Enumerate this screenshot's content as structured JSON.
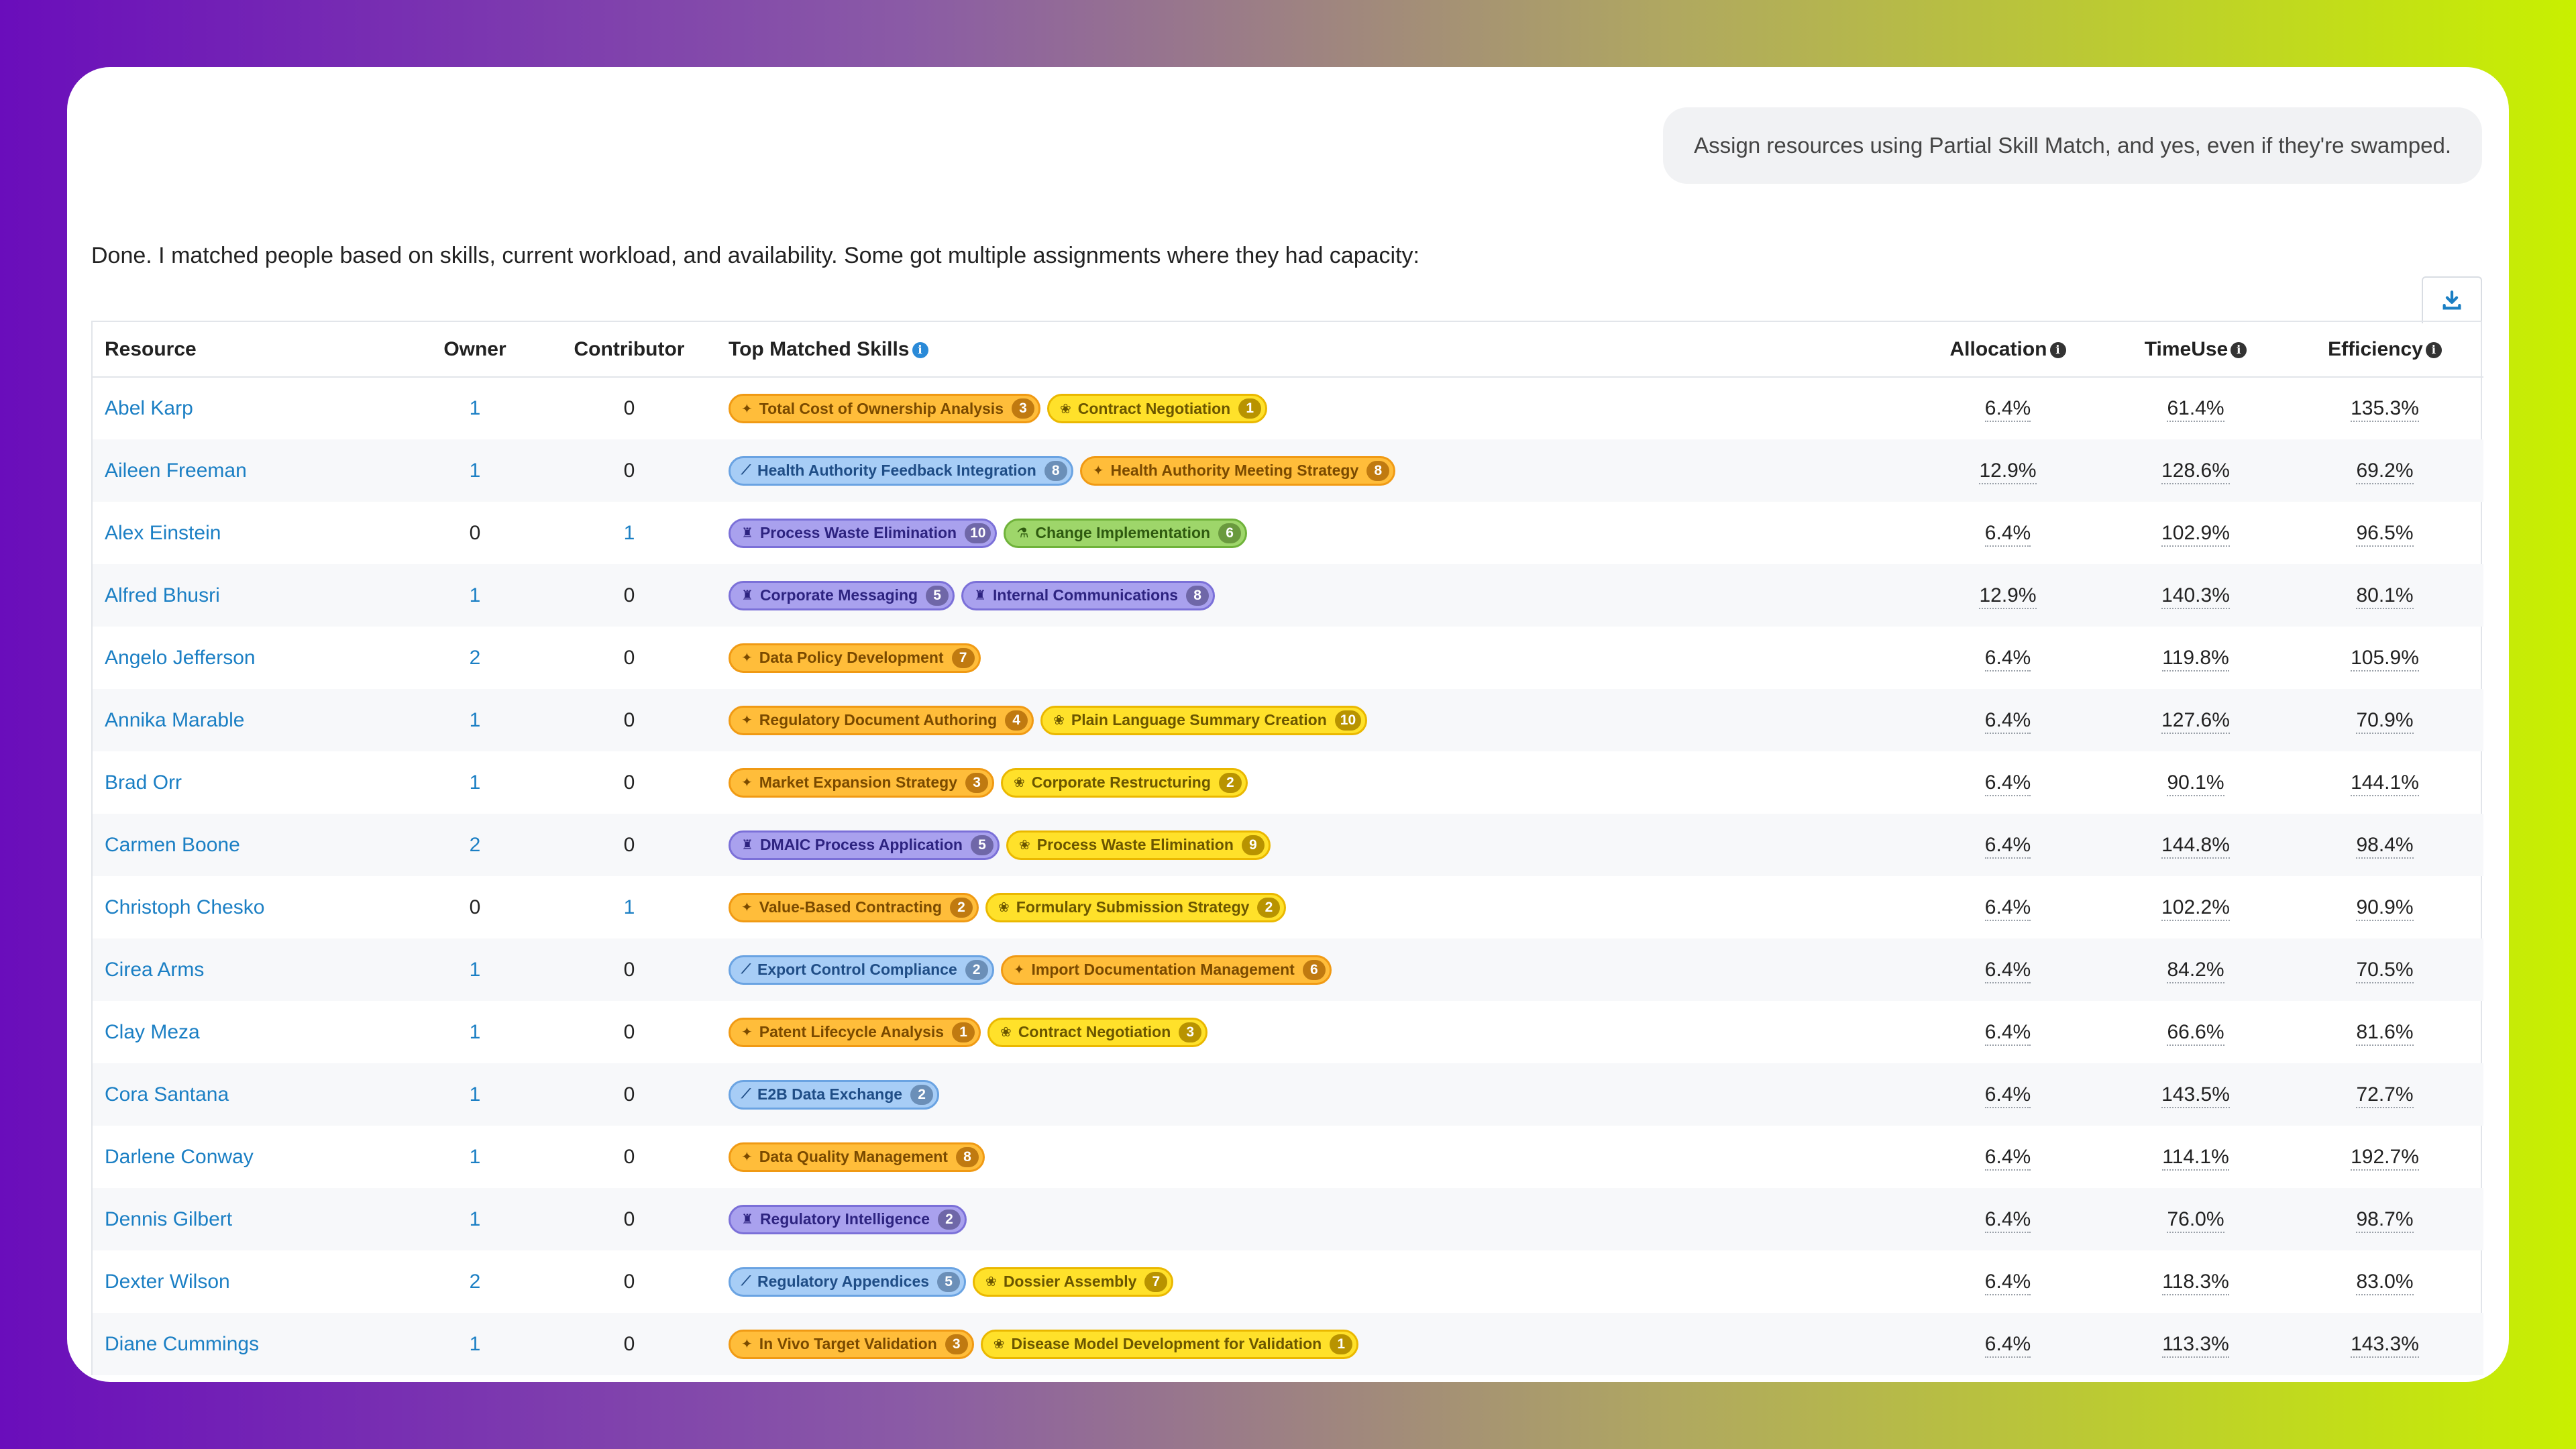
{
  "user_message": "Assign resources using Partial Skill Match, and yes, even if they're swamped.",
  "assistant_message": "Done. I matched people based on skills, current workload, and availability. Some got multiple assignments where they had capacity:",
  "table": {
    "headers": {
      "resource": "Resource",
      "owner": "Owner",
      "contributor": "Contributor",
      "skills": "Top Matched Skills",
      "allocation": "Allocation",
      "timeuse": "TimeUse",
      "efficiency": "Efficiency"
    },
    "info_glyph": "i",
    "rows": [
      {
        "name": "Abel Karp",
        "owner": "1",
        "contributor": "0",
        "skills": [
          {
            "label": "Total Cost of Ownership Analysis",
            "count": "3",
            "color": "orange",
            "icon": "puzzle-icon"
          },
          {
            "label": "Contract Negotiation",
            "count": "1",
            "color": "yellow",
            "icon": "paw-icon"
          }
        ],
        "allocation": "6.4%",
        "timeuse": "61.4%",
        "efficiency": "135.3%"
      },
      {
        "name": "Aileen Freeman",
        "owner": "1",
        "contributor": "0",
        "skills": [
          {
            "label": "Health Authority Feedback Integration",
            "count": "8",
            "color": "blue",
            "icon": "wand-icon"
          },
          {
            "label": "Health Authority Meeting Strategy",
            "count": "8",
            "color": "orange",
            "icon": "puzzle-icon"
          }
        ],
        "allocation": "12.9%",
        "timeuse": "128.6%",
        "efficiency": "69.2%"
      },
      {
        "name": "Alex Einstein",
        "owner": "0",
        "contributor": "1",
        "skills": [
          {
            "label": "Process Waste Elimination",
            "count": "10",
            "color": "purple",
            "icon": "trophy-icon"
          },
          {
            "label": "Change Implementation",
            "count": "6",
            "color": "green",
            "icon": "flask-icon"
          }
        ],
        "allocation": "6.4%",
        "timeuse": "102.9%",
        "efficiency": "96.5%"
      },
      {
        "name": "Alfred Bhusri",
        "owner": "1",
        "contributor": "0",
        "skills": [
          {
            "label": "Corporate Messaging",
            "count": "5",
            "color": "purple",
            "icon": "trophy-icon"
          },
          {
            "label": "Internal Communications",
            "count": "8",
            "color": "purple",
            "icon": "trophy-icon"
          }
        ],
        "allocation": "12.9%",
        "timeuse": "140.3%",
        "efficiency": "80.1%"
      },
      {
        "name": "Angelo Jefferson",
        "owner": "2",
        "contributor": "0",
        "skills": [
          {
            "label": "Data Policy Development",
            "count": "7",
            "color": "orange",
            "icon": "puzzle-icon"
          }
        ],
        "allocation": "6.4%",
        "timeuse": "119.8%",
        "efficiency": "105.9%"
      },
      {
        "name": "Annika Marable",
        "owner": "1",
        "contributor": "0",
        "skills": [
          {
            "label": "Regulatory Document Authoring",
            "count": "4",
            "color": "orange",
            "icon": "puzzle-icon"
          },
          {
            "label": "Plain Language Summary Creation",
            "count": "10",
            "color": "yellow",
            "icon": "paw-icon"
          }
        ],
        "allocation": "6.4%",
        "timeuse": "127.6%",
        "efficiency": "70.9%"
      },
      {
        "name": "Brad Orr",
        "owner": "1",
        "contributor": "0",
        "skills": [
          {
            "label": "Market Expansion Strategy",
            "count": "3",
            "color": "orange",
            "icon": "puzzle-icon"
          },
          {
            "label": "Corporate Restructuring",
            "count": "2",
            "color": "yellow",
            "icon": "paw-icon"
          }
        ],
        "allocation": "6.4%",
        "timeuse": "90.1%",
        "efficiency": "144.1%"
      },
      {
        "name": "Carmen Boone",
        "owner": "2",
        "contributor": "0",
        "skills": [
          {
            "label": "DMAIC Process Application",
            "count": "5",
            "color": "purple",
            "icon": "trophy-icon"
          },
          {
            "label": "Process Waste Elimination",
            "count": "9",
            "color": "yellow",
            "icon": "paw-icon"
          }
        ],
        "allocation": "6.4%",
        "timeuse": "144.8%",
        "efficiency": "98.4%"
      },
      {
        "name": "Christoph Chesko",
        "owner": "0",
        "contributor": "1",
        "skills": [
          {
            "label": "Value-Based Contracting",
            "count": "2",
            "color": "orange",
            "icon": "puzzle-icon"
          },
          {
            "label": "Formulary Submission Strategy",
            "count": "2",
            "color": "yellow",
            "icon": "paw-icon"
          }
        ],
        "allocation": "6.4%",
        "timeuse": "102.2%",
        "efficiency": "90.9%"
      },
      {
        "name": "Cirea Arms",
        "owner": "1",
        "contributor": "0",
        "skills": [
          {
            "label": "Export Control Compliance",
            "count": "2",
            "color": "blue",
            "icon": "wand-icon"
          },
          {
            "label": "Import Documentation Management",
            "count": "6",
            "color": "orange",
            "icon": "puzzle-icon"
          }
        ],
        "allocation": "6.4%",
        "timeuse": "84.2%",
        "efficiency": "70.5%"
      },
      {
        "name": "Clay Meza",
        "owner": "1",
        "contributor": "0",
        "skills": [
          {
            "label": "Patent Lifecycle Analysis",
            "count": "1",
            "color": "orange",
            "icon": "puzzle-icon"
          },
          {
            "label": "Contract Negotiation",
            "count": "3",
            "color": "yellow",
            "icon": "paw-icon"
          }
        ],
        "allocation": "6.4%",
        "timeuse": "66.6%",
        "efficiency": "81.6%"
      },
      {
        "name": "Cora Santana",
        "owner": "1",
        "contributor": "0",
        "skills": [
          {
            "label": "E2B Data Exchange",
            "count": "2",
            "color": "blue",
            "icon": "wand-icon"
          }
        ],
        "allocation": "6.4%",
        "timeuse": "143.5%",
        "efficiency": "72.7%"
      },
      {
        "name": "Darlene Conway",
        "owner": "1",
        "contributor": "0",
        "skills": [
          {
            "label": "Data Quality Management",
            "count": "8",
            "color": "orange",
            "icon": "puzzle-icon"
          }
        ],
        "allocation": "6.4%",
        "timeuse": "114.1%",
        "efficiency": "192.7%"
      },
      {
        "name": "Dennis Gilbert",
        "owner": "1",
        "contributor": "0",
        "skills": [
          {
            "label": "Regulatory Intelligence",
            "count": "2",
            "color": "purple",
            "icon": "trophy-icon"
          }
        ],
        "allocation": "6.4%",
        "timeuse": "76.0%",
        "efficiency": "98.7%"
      },
      {
        "name": "Dexter Wilson",
        "owner": "2",
        "contributor": "0",
        "skills": [
          {
            "label": "Regulatory Appendices",
            "count": "5",
            "color": "blue",
            "icon": "wand-icon"
          },
          {
            "label": "Dossier Assembly",
            "count": "7",
            "color": "yellow",
            "icon": "paw-icon"
          }
        ],
        "allocation": "6.4%",
        "timeuse": "118.3%",
        "efficiency": "83.0%"
      },
      {
        "name": "Diane Cummings",
        "owner": "1",
        "contributor": "0",
        "skills": [
          {
            "label": "In Vivo Target Validation",
            "count": "3",
            "color": "orange",
            "icon": "puzzle-icon"
          },
          {
            "label": "Disease Model Development for Validation",
            "count": "1",
            "color": "yellow",
            "icon": "paw-icon"
          }
        ],
        "allocation": "6.4%",
        "timeuse": "113.3%",
        "efficiency": "143.3%"
      }
    ]
  },
  "icon_glyphs": {
    "puzzle-icon": "✦",
    "paw-icon": "❀",
    "wand-icon": "⟋",
    "trophy-icon": "♜",
    "flask-icon": "⚗"
  }
}
